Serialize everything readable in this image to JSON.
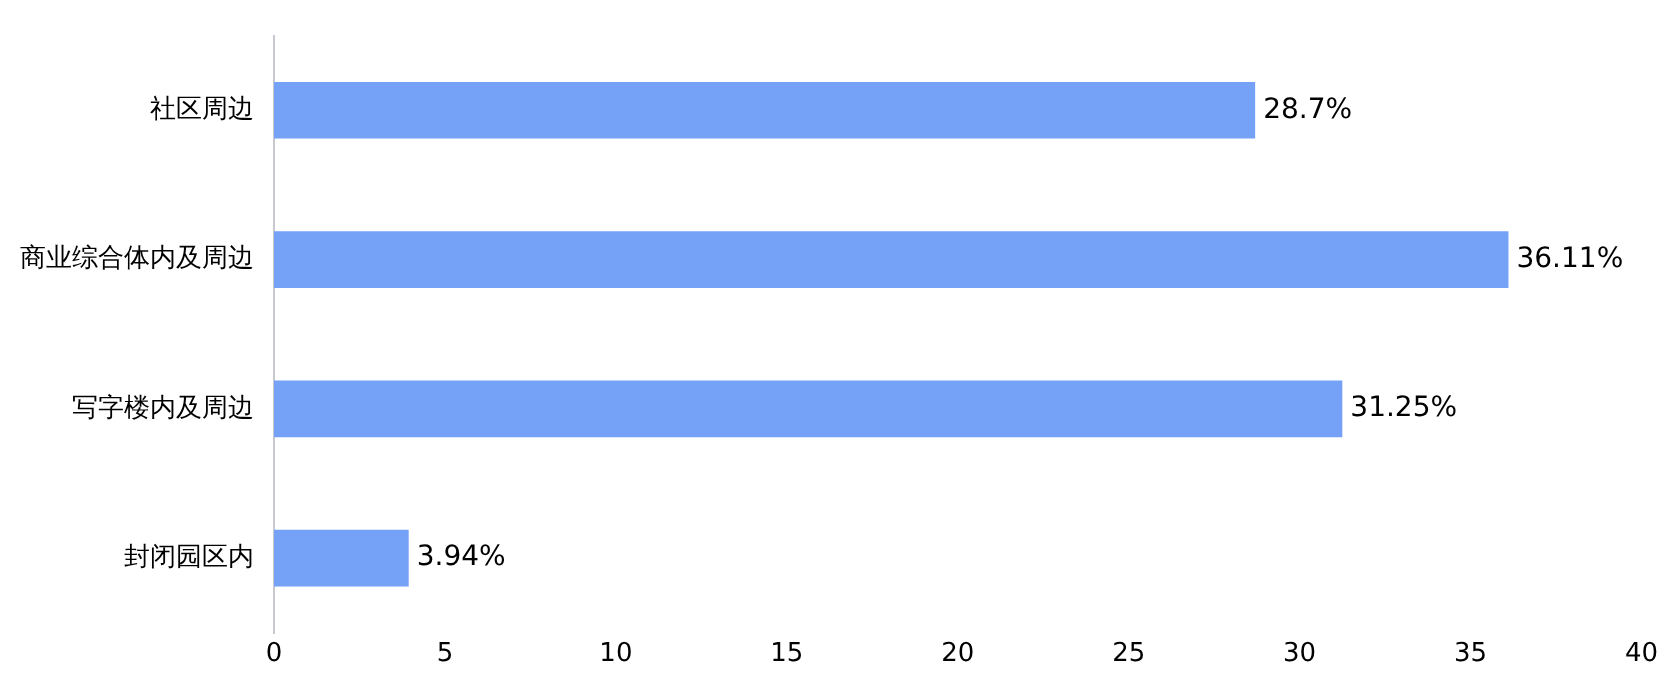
{
  "chart_data": {
    "type": "bar",
    "orientation": "horizontal",
    "categories": [
      "社区周边",
      "商业综合体内及周边",
      "写字楼内及周边",
      "封闭园区内"
    ],
    "values": [
      28.7,
      36.11,
      31.25,
      3.94
    ],
    "value_labels": [
      "28.7%",
      "36.11%",
      "31.25%",
      "3.94%"
    ],
    "color": "#75a1f7",
    "xlim": [
      0,
      40
    ],
    "xticks": [
      0,
      5,
      10,
      15,
      20,
      25,
      30,
      35,
      40
    ],
    "grid": false,
    "legend": false
  }
}
